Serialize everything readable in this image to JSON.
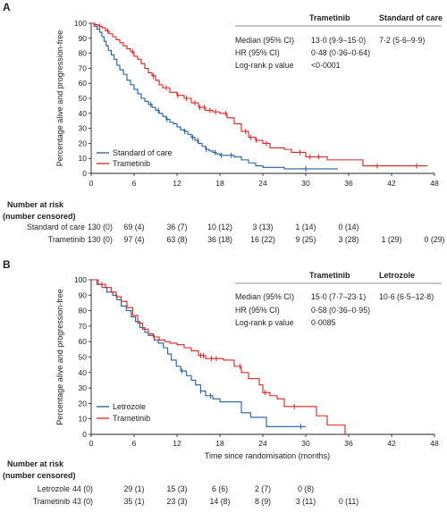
{
  "chart_data": [
    {
      "panel_label": "A",
      "type": "line",
      "chart_subtype": "kaplan-meier",
      "ylabel": "Percentage alive and progression-free",
      "xlabel": "",
      "xlim": [
        0,
        48
      ],
      "ylim": [
        0,
        100
      ],
      "xticks": [
        0,
        6,
        12,
        18,
        24,
        30,
        36,
        42,
        48
      ],
      "yticks": [
        0,
        10,
        20,
        30,
        40,
        50,
        60,
        70,
        80,
        90,
        100
      ],
      "legend": {
        "position": "bottom-left",
        "entries": [
          "Standard of care",
          "Trametinib"
        ]
      },
      "stats_table": {
        "col_headers": [
          "Trametinib",
          "Standard of care"
        ],
        "rows": [
          {
            "label": "Median (95% CI)",
            "values": [
              "13·0 (9·9–15·0)",
              "7·2 (5·6–9·9)"
            ]
          },
          {
            "label": "HR (95% CI)",
            "values": [
              "0·48 (0·36–0·64)",
              ""
            ]
          },
          {
            "label": "Log-rank p value",
            "values": [
              "<0·0001",
              ""
            ]
          }
        ]
      },
      "series": [
        {
          "name": "Standard of care",
          "color": "#1f5fa4",
          "x": [
            0,
            0.4,
            0.8,
            1.2,
            1.5,
            1.8,
            2.1,
            2.4,
            2.8,
            3.2,
            3.6,
            4.0,
            4.5,
            5.0,
            5.5,
            6.0,
            6.5,
            7.0,
            7.5,
            8.0,
            8.5,
            9.0,
            9.5,
            10.0,
            10.5,
            11.0,
            11.5,
            12.0,
            12.5,
            13.0,
            13.5,
            14.0,
            14.5,
            15.0,
            15.5,
            16.0,
            16.5,
            17.0,
            17.5,
            18.0,
            19.0,
            20.0,
            21.0,
            22.0,
            23.0,
            24.0,
            27.0,
            34.5
          ],
          "y": [
            100,
            98,
            96,
            94,
            91,
            88,
            85,
            82,
            79,
            76,
            72,
            69,
            66,
            62,
            59,
            56,
            53,
            50,
            48,
            46,
            44,
            42,
            40,
            38,
            36,
            34,
            33,
            31,
            29,
            28,
            26,
            24,
            22,
            20,
            18,
            16,
            15,
            14,
            13,
            12,
            12,
            11,
            9,
            7,
            5,
            4,
            3,
            3
          ],
          "censored_x": [
            8.3,
            9.4,
            10.6,
            13.1,
            14.2,
            14.9,
            16.1,
            17.3,
            18.2,
            19.6,
            30.0
          ]
        },
        {
          "name": "Trametinib",
          "color": "#e3201f",
          "x": [
            0,
            0.5,
            1.0,
            1.5,
            2.0,
            2.5,
            3.0,
            3.5,
            4.0,
            4.5,
            5.0,
            5.5,
            6.0,
            6.5,
            7.0,
            7.5,
            8.0,
            8.5,
            9.0,
            9.5,
            10.0,
            11.0,
            12.0,
            13.0,
            14.0,
            15.0,
            16.0,
            17.0,
            18.0,
            19.0,
            20.0,
            21.0,
            22.0,
            23.0,
            24.0,
            25.0,
            27.0,
            28.0,
            30.0,
            33.0,
            38.0,
            47.0
          ],
          "y": [
            100,
            99,
            98,
            97,
            95,
            93,
            91,
            89,
            87,
            85,
            83,
            81,
            78,
            76,
            73,
            70,
            67,
            65,
            62,
            59,
            57,
            54,
            52,
            50,
            47,
            44,
            42,
            41,
            40,
            37,
            33,
            28,
            24,
            22,
            20,
            17,
            16,
            14,
            11,
            9,
            5,
            5
          ],
          "censored_x": [
            1.2,
            2.3,
            5.8,
            8.7,
            10.5,
            12.1,
            13.3,
            14.5,
            15.2,
            15.8,
            16.6,
            17.4,
            18.8,
            21.6,
            22.3,
            23.1,
            24.5,
            29.2,
            30.6,
            31.8,
            40.0,
            45.5
          ]
        }
      ],
      "risk_table": {
        "title": "Number at risk",
        "subtitle": "(number censored)",
        "rows": [
          {
            "label": "Standard of care",
            "values": [
              "130 (0)",
              "69 (4)",
              "36 (7)",
              "10 (12)",
              "3 (13)",
              "1 (14)",
              "0 (14)",
              "",
              ""
            ]
          },
          {
            "label": "Trametinib",
            "values": [
              "130 (0)",
              "97 (4)",
              "63 (8)",
              "36 (18)",
              "16 (22)",
              "9 (25)",
              "3 (28)",
              "1 (29)",
              "0 (29)"
            ]
          }
        ]
      }
    },
    {
      "panel_label": "B",
      "type": "line",
      "chart_subtype": "kaplan-meier",
      "ylabel": "Percentage alive and progression-free",
      "xlabel": "Time since randomisation (months)",
      "xlim": [
        0,
        48
      ],
      "ylim": [
        0,
        100
      ],
      "xticks": [
        0,
        6,
        12,
        18,
        24,
        30,
        36,
        42,
        48
      ],
      "yticks": [
        0,
        10,
        20,
        30,
        40,
        50,
        60,
        70,
        80,
        90,
        100
      ],
      "legend": {
        "position": "bottom-left",
        "entries": [
          "Letrozole",
          "Trametinib"
        ]
      },
      "stats_table": {
        "col_headers": [
          "Trametinib",
          "Letrozole"
        ],
        "rows": [
          {
            "label": "Median (95% CI)",
            "values": [
              "15·0 (7·7–23·1)",
              "10·6 (6·5–12·8)"
            ]
          },
          {
            "label": "HR (95% CI)",
            "values": [
              "0·58 (0·36–0·95)",
              ""
            ]
          },
          {
            "label": "Log-rank p value",
            "values": [
              "0·0085",
              ""
            ]
          }
        ]
      },
      "series": [
        {
          "name": "Letrozole",
          "color": "#1f5fa4",
          "x": [
            0,
            0.8,
            1.5,
            2.2,
            3.0,
            3.6,
            4.2,
            4.9,
            5.6,
            6.2,
            6.8,
            7.5,
            8.0,
            8.8,
            9.4,
            10.1,
            10.7,
            11.2,
            11.9,
            12.5,
            13.3,
            14.0,
            14.6,
            15.3,
            16.0,
            17.0,
            18.0,
            19.0,
            19.8,
            21.0,
            22.3,
            24.5,
            27.5,
            30.0
          ],
          "y": [
            100,
            97,
            95,
            92,
            90,
            87,
            83,
            80,
            76,
            73,
            69,
            66,
            64,
            61,
            59,
            56,
            52,
            48,
            44,
            41,
            38,
            35,
            32,
            28,
            25,
            23,
            21,
            21,
            21,
            14,
            11,
            5,
            5,
            5
          ],
          "censored_x": [
            12.7,
            15.3,
            16.7,
            29.3
          ]
        },
        {
          "name": "Trametinib",
          "color": "#e3201f",
          "x": [
            0,
            1.0,
            2.0,
            2.8,
            3.5,
            4.2,
            5.0,
            5.8,
            6.5,
            7.2,
            8.0,
            8.7,
            9.5,
            10.3,
            11.0,
            12.0,
            13.0,
            14.0,
            15.0,
            16.0,
            17.0,
            18.5,
            20.0,
            21.0,
            22.0,
            23.5,
            24.0,
            25.0,
            26.0,
            27.0,
            28.5,
            30.0,
            31.5,
            33.0,
            35.5
          ],
          "y": [
            100,
            97,
            95,
            92,
            89,
            86,
            82,
            77,
            72,
            68,
            65,
            63,
            61,
            60,
            59,
            58,
            56,
            54,
            51,
            49,
            49,
            48,
            44,
            40,
            36,
            32,
            27,
            25,
            23,
            18,
            18,
            18,
            12,
            6,
            0
          ],
          "censored_x": [
            1.5,
            15.3,
            15.7,
            16.8,
            17.5,
            20.8,
            24.3,
            28.4
          ]
        }
      ],
      "risk_table": {
        "title": "Number at risk",
        "subtitle": "(number censored)",
        "rows": [
          {
            "label": "Letrozole",
            "values": [
              "44 (0)",
              "29 (1)",
              "15 (3)",
              "6 (6)",
              "2 (7)",
              "0 (8)",
              "",
              "",
              ""
            ]
          },
          {
            "label": "Trametinib",
            "values": [
              "43 (0)",
              "35 (1)",
              "23 (3)",
              "14 (8)",
              "8 (9)",
              "3 (11)",
              "0 (11)",
              "",
              ""
            ]
          }
        ]
      }
    }
  ]
}
